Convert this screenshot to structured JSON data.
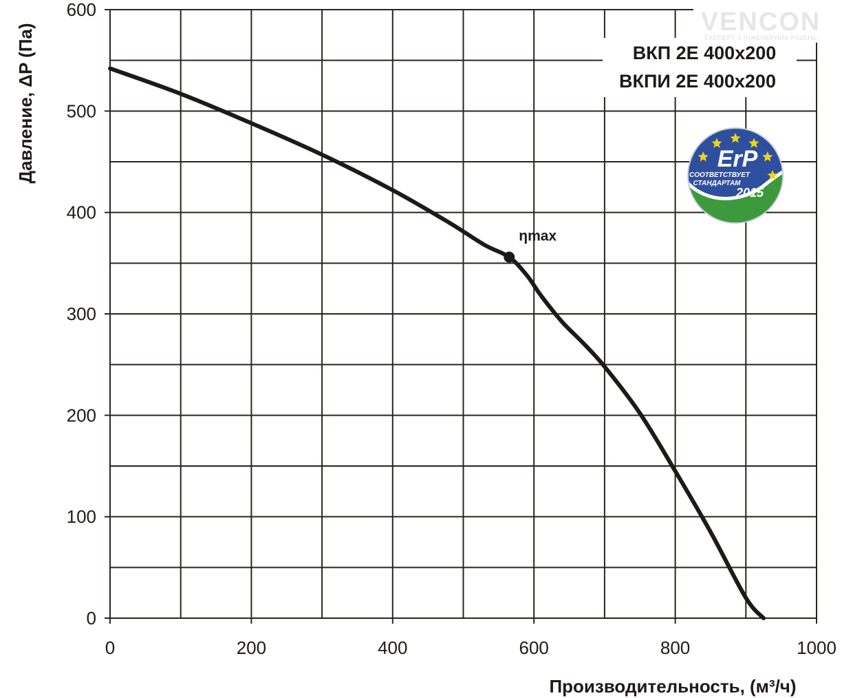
{
  "logo": {
    "name": "VENCON",
    "tagline": "ЕКСПЕРТ З ІНЖЕНЕРНИХ РІШЕНЬ"
  },
  "models": [
    "ВКП 2Е 400x200",
    "ВКПИ 2Е 400x200"
  ],
  "badge": {
    "title": "ErP",
    "line1": "СООТВЕТСТВУЕТ",
    "line2": "СТАНДАРТАМ",
    "year": "2015",
    "colors": {
      "blue": "#2e4f9e",
      "green": "#3c9a3c",
      "star": "#f2d21a"
    }
  },
  "chart_data": {
    "type": "line",
    "xlabel": "Производительность, (м³/ч)",
    "ylabel": "Давление, ΔP (Па)",
    "xlim": [
      0,
      1000
    ],
    "ylim": [
      0,
      600
    ],
    "xticks": [
      0,
      200,
      400,
      600,
      800,
      1000
    ],
    "yticks": [
      0,
      100,
      200,
      300,
      400,
      500,
      600
    ],
    "grid": true,
    "grid_step": {
      "x": 100,
      "y": 50
    },
    "series": [
      {
        "x": [
          0,
          100,
          200,
          300,
          400,
          480,
          530,
          565,
          590,
          610,
          640,
          670,
          700,
          750,
          800,
          850,
          900,
          925
        ],
        "y": [
          542,
          517,
          488,
          457,
          422,
          390,
          368,
          356,
          338,
          318,
          292,
          271,
          248,
          202,
          145,
          85,
          20,
          0
        ],
        "color": "#1e1a16"
      }
    ],
    "annotations": [
      {
        "label": "ηmax",
        "x": 565,
        "y": 356
      }
    ]
  }
}
